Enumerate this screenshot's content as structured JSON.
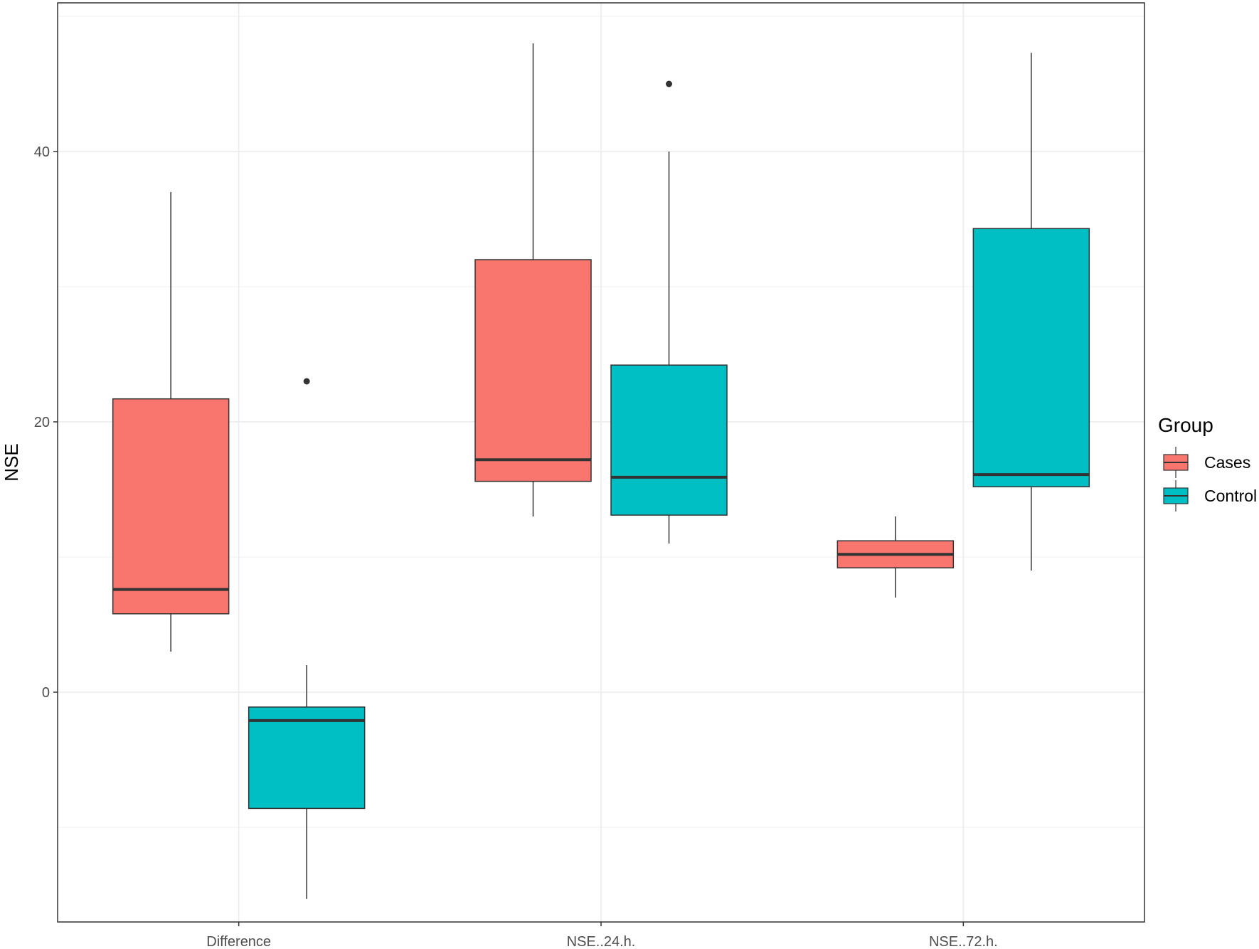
{
  "chart_data": {
    "type": "boxplot",
    "title": "",
    "xlabel": "",
    "ylabel": "NSE",
    "ylim": [
      -17,
      51
    ],
    "yticks": [
      0,
      20,
      40
    ],
    "ytick_labels": [
      "0",
      "20",
      "40"
    ],
    "grid": true,
    "categories": [
      "Difference",
      "NSE..24.h.",
      "NSE..72.h."
    ],
    "legend": {
      "title": "Group",
      "position": "right",
      "entries": [
        "Cases",
        "Control"
      ]
    },
    "colors": {
      "Cases": "#F8766D",
      "Control": "#00BFC4"
    },
    "series": [
      {
        "name": "Cases",
        "boxes": [
          {
            "category": "Difference",
            "min": 3,
            "q1": 5.8,
            "median": 7.6,
            "q3": 21.7,
            "max": 37,
            "outliers": []
          },
          {
            "category": "NSE..24.h.",
            "min": 13,
            "q1": 15.6,
            "median": 17.2,
            "q3": 32,
            "max": 48,
            "outliers": []
          },
          {
            "category": "NSE..72.h.",
            "min": 7,
            "q1": 9.2,
            "median": 10.2,
            "q3": 11.2,
            "max": 13,
            "outliers": []
          }
        ]
      },
      {
        "name": "Control",
        "boxes": [
          {
            "category": "Difference",
            "min": -15.3,
            "q1": -8.6,
            "median": -2.1,
            "q3": -1.1,
            "max": 2,
            "outliers": [
              23
            ]
          },
          {
            "category": "NSE..24.h.",
            "min": 11,
            "q1": 13.1,
            "median": 15.9,
            "q3": 24.2,
            "max": 40,
            "outliers": [
              45
            ]
          },
          {
            "category": "NSE..72.h.",
            "min": 9,
            "q1": 15.2,
            "median": 16.1,
            "q3": 34.3,
            "max": 47.3,
            "outliers": []
          }
        ]
      }
    ]
  }
}
